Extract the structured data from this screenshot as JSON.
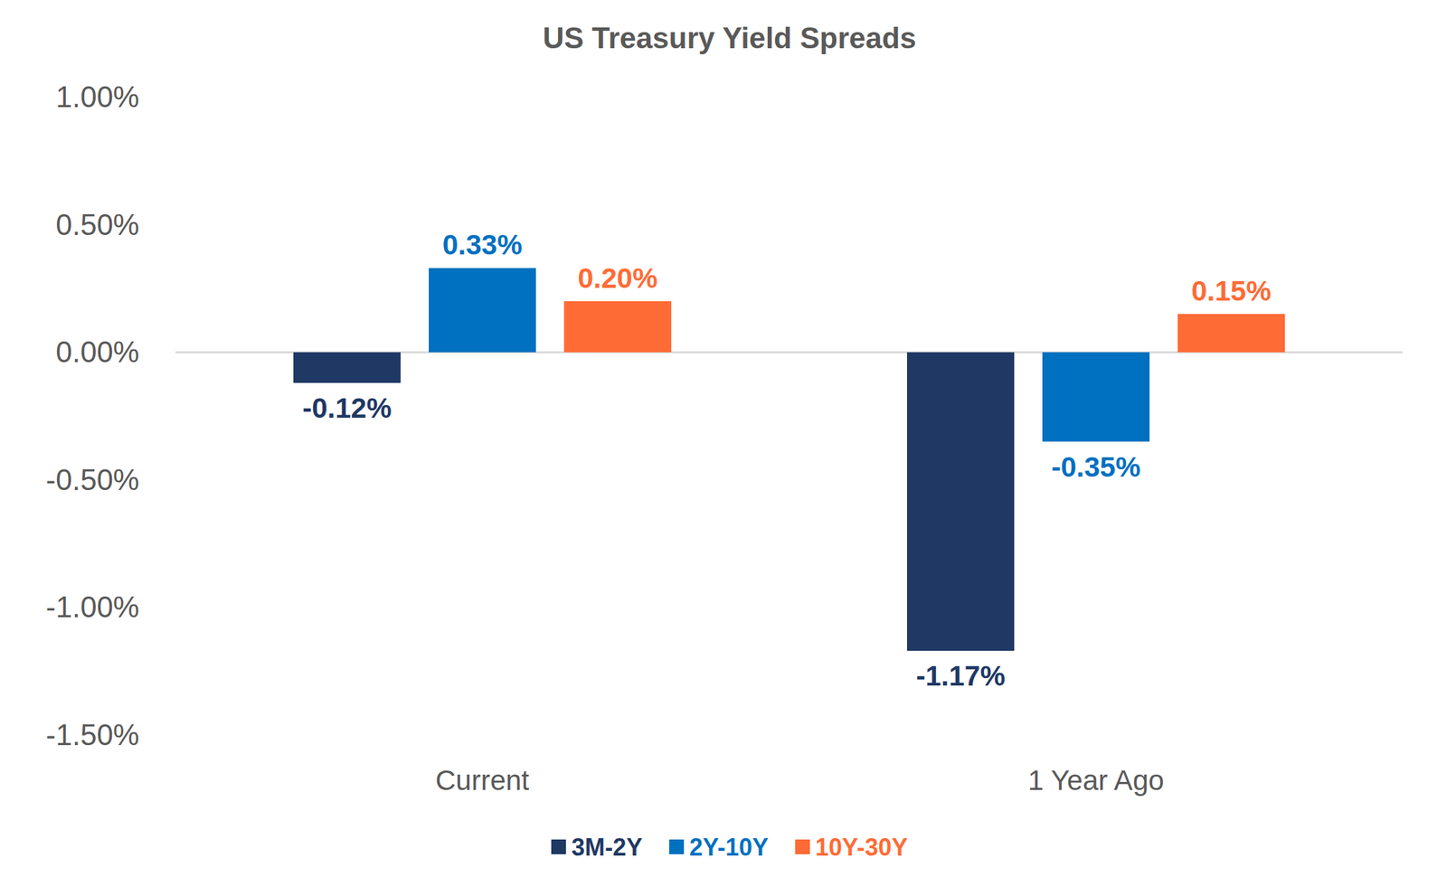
{
  "chart_data": {
    "type": "bar",
    "title": "US Treasury Yield Spreads",
    "categories": [
      "Current",
      "1 Year Ago"
    ],
    "series": [
      {
        "name": "3M-2Y",
        "color": "#1f3864",
        "values": [
          -0.12,
          -1.17
        ],
        "value_labels": [
          "-0.12%",
          "-1.17%"
        ]
      },
      {
        "name": "2Y-10Y",
        "color": "#0070c0",
        "values": [
          0.33,
          -0.35
        ],
        "value_labels": [
          "0.33%",
          "-0.35%"
        ]
      },
      {
        "name": "10Y-30Y",
        "color": "#ff6b35",
        "values": [
          0.2,
          0.15
        ],
        "value_labels": [
          "0.20%",
          "0.15%"
        ]
      }
    ],
    "ylim": [
      -1.5,
      1.0
    ],
    "yticks": [
      {
        "value": -1.5,
        "label": "-1.50%"
      },
      {
        "value": -1.0,
        "label": "-1.00%"
      },
      {
        "value": -0.5,
        "label": "-0.50%"
      },
      {
        "value": 0,
        "label": "0.00%"
      },
      {
        "value": 0.5,
        "label": "0.50%"
      },
      {
        "value": 1.0,
        "label": "1.00%"
      }
    ],
    "grid": false,
    "legend": "bottom",
    "data_labels": true
  }
}
